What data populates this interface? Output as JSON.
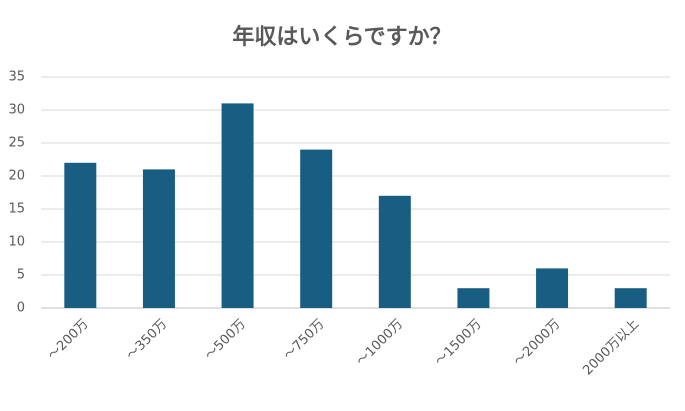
{
  "chart_data": {
    "type": "bar",
    "title": "年収はいくらですか？",
    "categories": [
      "～200万",
      "～350万",
      "～500万",
      "～750万",
      "～1000万",
      "～1500万",
      "～2000万",
      "2000万以上"
    ],
    "values": [
      22,
      21,
      31,
      24,
      17,
      3,
      6,
      3
    ],
    "color": "#175e82",
    "ylim": [
      0,
      35
    ],
    "yticks": [
      0,
      5,
      10,
      15,
      20,
      25,
      30,
      35
    ],
    "grid": true
  }
}
